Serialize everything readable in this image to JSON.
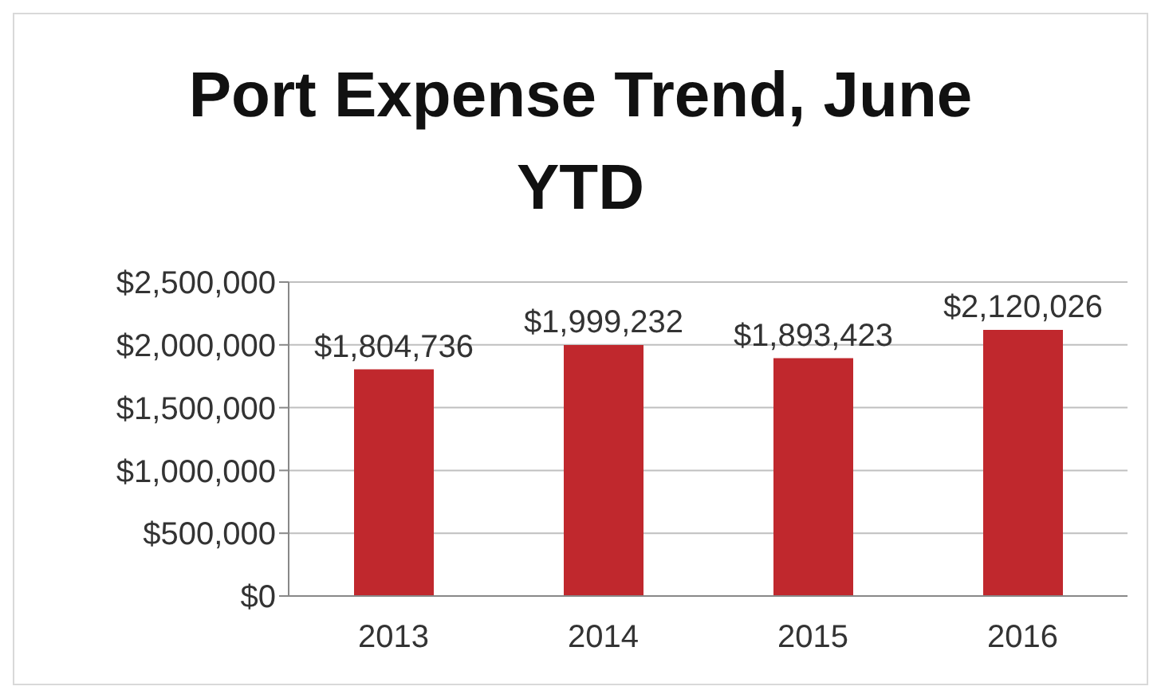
{
  "chart_data": {
    "type": "bar",
    "title": "Port Expense Trend, June YTD",
    "categories": [
      "2013",
      "2014",
      "2015",
      "2016"
    ],
    "values": [
      1804736,
      1999232,
      1893423,
      2120026
    ],
    "value_labels": [
      "$1,804,736",
      "$1,999,232",
      "$1,893,423",
      "$2,120,026"
    ],
    "color": "#c0282d",
    "ylim": [
      0,
      2500000
    ],
    "yticks": [
      {
        "value": 0,
        "label": "$0"
      },
      {
        "value": 500000,
        "label": "$500,000"
      },
      {
        "value": 1000000,
        "label": "$1,000,000"
      },
      {
        "value": 1500000,
        "label": "$1,500,000"
      },
      {
        "value": 2000000,
        "label": "$2,000,000"
      },
      {
        "value": 2500000,
        "label": "$2,500,000"
      }
    ],
    "grid": "y"
  }
}
